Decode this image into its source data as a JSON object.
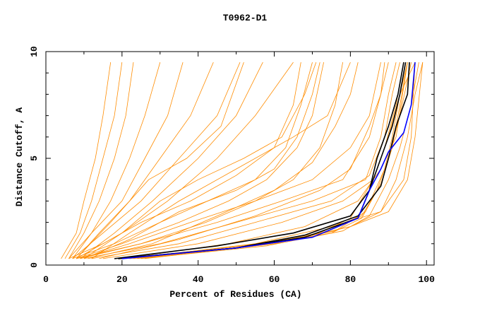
{
  "chart_data": {
    "type": "line",
    "title": "T0962-D1",
    "xlabel": "Percent of Residues (CA)",
    "ylabel": "Distance Cutoff, A",
    "xlim": [
      0,
      102
    ],
    "ylim": [
      0,
      10
    ],
    "xticks": [
      "0",
      "20",
      "40",
      "60",
      "80",
      "100"
    ],
    "yticks": [
      "0",
      "5",
      "10"
    ],
    "grid": false,
    "colors": {
      "models": "#ff8c00",
      "highlight": "#000000",
      "best": "#0000ff"
    },
    "series": [
      {
        "group": "models",
        "points": [
          [
            22,
            0.3
          ],
          [
            55,
            0.9
          ],
          [
            75,
            1.5
          ],
          [
            83,
            2.2
          ],
          [
            87,
            3.5
          ],
          [
            90,
            5
          ],
          [
            93,
            7
          ],
          [
            96,
            9.5
          ]
        ]
      },
      {
        "group": "models",
        "points": [
          [
            25,
            0.3
          ],
          [
            58,
            0.9
          ],
          [
            78,
            1.6
          ],
          [
            85,
            2.3
          ],
          [
            90,
            4
          ],
          [
            93,
            5.5
          ],
          [
            96,
            7.5
          ],
          [
            98,
            9.5
          ]
        ]
      },
      {
        "group": "models",
        "points": [
          [
            20,
            0.3
          ],
          [
            52,
            0.9
          ],
          [
            72,
            1.5
          ],
          [
            80,
            2.2
          ],
          [
            86,
            4
          ],
          [
            89,
            5.5
          ],
          [
            92,
            7.5
          ],
          [
            94,
            9.5
          ]
        ]
      },
      {
        "group": "models",
        "points": [
          [
            24,
            0.3
          ],
          [
            60,
            1
          ],
          [
            80,
            1.8
          ],
          [
            88,
            2.5
          ],
          [
            92,
            4
          ],
          [
            95,
            6
          ],
          [
            97,
            8
          ],
          [
            99,
            9.5
          ]
        ]
      },
      {
        "group": "models",
        "points": [
          [
            21,
            0.3
          ],
          [
            50,
            0.8
          ],
          [
            70,
            1.4
          ],
          [
            83,
            2.3
          ],
          [
            88,
            3.8
          ],
          [
            91,
            5.5
          ],
          [
            93,
            7.5
          ],
          [
            95,
            9.5
          ]
        ]
      },
      {
        "group": "models",
        "points": [
          [
            23,
            0.3
          ],
          [
            55,
            0.9
          ],
          [
            76,
            1.6
          ],
          [
            84,
            2.5
          ],
          [
            89,
            4.5
          ],
          [
            91,
            6
          ],
          [
            93,
            8
          ],
          [
            97,
            9.5
          ]
        ]
      },
      {
        "group": "models",
        "points": [
          [
            10,
            0.3
          ],
          [
            30,
            1
          ],
          [
            50,
            2
          ],
          [
            70,
            3
          ],
          [
            84,
            4
          ],
          [
            88,
            6
          ],
          [
            90,
            8
          ],
          [
            92,
            9.5
          ]
        ]
      },
      {
        "group": "models",
        "points": [
          [
            12,
            0.3
          ],
          [
            35,
            1
          ],
          [
            55,
            2
          ],
          [
            75,
            3
          ],
          [
            85,
            4.2
          ],
          [
            89,
            6
          ],
          [
            91,
            8
          ],
          [
            93,
            9.5
          ]
        ]
      },
      {
        "group": "models",
        "points": [
          [
            8,
            0.3
          ],
          [
            25,
            1
          ],
          [
            45,
            2
          ],
          [
            62,
            3
          ],
          [
            78,
            4
          ],
          [
            85,
            6
          ],
          [
            88,
            8
          ],
          [
            90,
            9.5
          ]
        ]
      },
      {
        "group": "models",
        "points": [
          [
            15,
            0.3
          ],
          [
            40,
            1
          ],
          [
            62,
            2
          ],
          [
            78,
            3
          ],
          [
            86,
            4
          ],
          [
            90,
            6
          ],
          [
            93,
            8
          ],
          [
            95,
            9.5
          ]
        ]
      },
      {
        "group": "models",
        "points": [
          [
            14,
            0.3
          ],
          [
            35,
            1.2
          ],
          [
            55,
            2.3
          ],
          [
            72,
            3.5
          ],
          [
            80,
            4.5
          ],
          [
            85,
            6.5
          ],
          [
            88,
            8
          ],
          [
            89,
            9.5
          ]
        ]
      },
      {
        "group": "models",
        "points": [
          [
            9,
            0.3
          ],
          [
            22,
            1
          ],
          [
            38,
            2
          ],
          [
            55,
            3
          ],
          [
            70,
            4
          ],
          [
            80,
            5.5
          ],
          [
            85,
            7
          ],
          [
            88,
            9.5
          ]
        ]
      },
      {
        "group": "models",
        "points": [
          [
            8,
            0.3
          ],
          [
            20,
            1
          ],
          [
            35,
            2
          ],
          [
            48,
            3
          ],
          [
            58,
            4
          ],
          [
            66,
            5.5
          ],
          [
            70,
            7
          ],
          [
            73,
            9.5
          ]
        ]
      },
      {
        "group": "models",
        "points": [
          [
            10,
            0.3
          ],
          [
            22,
            1.2
          ],
          [
            35,
            2.5
          ],
          [
            50,
            3.5
          ],
          [
            60,
            4.5
          ],
          [
            66,
            6
          ],
          [
            70,
            8
          ],
          [
            72,
            9.5
          ]
        ]
      },
      {
        "group": "models",
        "points": [
          [
            7,
            0.3
          ],
          [
            18,
            1
          ],
          [
            30,
            2
          ],
          [
            45,
            3.2
          ],
          [
            55,
            4
          ],
          [
            63,
            5.5
          ],
          [
            67,
            7.5
          ],
          [
            70,
            9.5
          ]
        ]
      },
      {
        "group": "models",
        "points": [
          [
            9,
            0.3
          ],
          [
            25,
            1
          ],
          [
            42,
            2
          ],
          [
            55,
            3
          ],
          [
            65,
            4
          ],
          [
            72,
            5.5
          ],
          [
            76,
            7.5
          ],
          [
            78,
            9.5
          ]
        ]
      },
      {
        "group": "models",
        "points": [
          [
            6,
            0.3
          ],
          [
            15,
            1
          ],
          [
            25,
            2
          ],
          [
            38,
            3
          ],
          [
            50,
            4.2
          ],
          [
            60,
            5.5
          ],
          [
            65,
            7.5
          ],
          [
            67,
            9.5
          ]
        ]
      },
      {
        "group": "models",
        "points": [
          [
            11,
            0.3
          ],
          [
            28,
            1
          ],
          [
            45,
            2.3
          ],
          [
            60,
            3.5
          ],
          [
            70,
            4.8
          ],
          [
            76,
            6.5
          ],
          [
            80,
            8
          ],
          [
            82,
            9.5
          ]
        ]
      },
      {
        "group": "models",
        "points": [
          [
            8,
            0.3
          ],
          [
            20,
            1.5
          ],
          [
            30,
            3
          ],
          [
            40,
            4
          ],
          [
            52,
            5
          ],
          [
            62,
            6
          ],
          [
            68,
            8
          ],
          [
            71,
            9.5
          ]
        ]
      },
      {
        "group": "models",
        "points": [
          [
            4,
            0.3
          ],
          [
            8,
            1.5
          ],
          [
            10,
            3
          ],
          [
            13,
            5
          ],
          [
            15,
            7
          ],
          [
            17,
            9.5
          ]
        ]
      },
      {
        "group": "models",
        "points": [
          [
            5,
            0.3
          ],
          [
            9,
            1.5
          ],
          [
            12,
            3
          ],
          [
            15,
            5
          ],
          [
            18,
            7
          ],
          [
            20,
            9.5
          ]
        ]
      },
      {
        "group": "models",
        "points": [
          [
            6,
            0.3
          ],
          [
            10,
            1.5
          ],
          [
            14,
            3
          ],
          [
            18,
            5
          ],
          [
            21,
            7
          ],
          [
            23,
            9.5
          ]
        ]
      },
      {
        "group": "models",
        "points": [
          [
            7,
            0.3
          ],
          [
            12,
            1.5
          ],
          [
            17,
            3
          ],
          [
            22,
            5
          ],
          [
            26,
            7
          ],
          [
            30,
            9.5
          ]
        ]
      },
      {
        "group": "models",
        "points": [
          [
            6,
            0.3
          ],
          [
            12,
            1.5
          ],
          [
            20,
            3
          ],
          [
            26,
            5
          ],
          [
            32,
            7
          ],
          [
            36,
            9.5
          ]
        ]
      },
      {
        "group": "models",
        "points": [
          [
            8,
            0.3
          ],
          [
            14,
            1.5
          ],
          [
            22,
            3
          ],
          [
            30,
            5
          ],
          [
            38,
            7
          ],
          [
            44,
            9.5
          ]
        ]
      },
      {
        "group": "models",
        "points": [
          [
            7,
            0.3
          ],
          [
            15,
            1.5
          ],
          [
            25,
            3
          ],
          [
            35,
            5
          ],
          [
            45,
            7
          ],
          [
            51,
            9.5
          ]
        ]
      },
      {
        "group": "models",
        "points": [
          [
            9,
            0.3
          ],
          [
            18,
            1.5
          ],
          [
            28,
            3
          ],
          [
            40,
            5
          ],
          [
            50,
            7
          ],
          [
            57,
            9.5
          ]
        ]
      },
      {
        "group": "models",
        "points": [
          [
            10,
            0.3
          ],
          [
            20,
            1.5
          ],
          [
            32,
            3
          ],
          [
            45,
            5
          ],
          [
            55,
            7
          ],
          [
            65,
            9.5
          ]
        ]
      },
      {
        "group": "models",
        "points": [
          [
            8,
            0.3
          ],
          [
            17,
            2
          ],
          [
            27,
            4
          ],
          [
            37,
            5
          ],
          [
            46,
            6.5
          ],
          [
            52,
            9.5
          ]
        ]
      },
      {
        "group": "models",
        "points": [
          [
            12,
            0.3
          ],
          [
            22,
            1.5
          ],
          [
            35,
            3
          ],
          [
            50,
            4.5
          ],
          [
            65,
            6
          ],
          [
            74,
            7
          ],
          [
            80,
            9.5
          ]
        ]
      },
      {
        "group": "models",
        "points": [
          [
            26,
            0.3
          ],
          [
            60,
            1
          ],
          [
            80,
            1.8
          ],
          [
            90,
            2.5
          ],
          [
            95,
            4
          ],
          [
            97,
            6
          ],
          [
            99,
            9.5
          ]
        ]
      },
      {
        "group": "models",
        "points": [
          [
            22,
            0.3
          ],
          [
            55,
            1
          ],
          [
            75,
            1.8
          ],
          [
            88,
            2.5
          ],
          [
            94,
            4
          ],
          [
            96,
            6
          ],
          [
            97,
            9.5
          ]
        ]
      },
      {
        "group": "models",
        "points": [
          [
            20,
            0.3
          ],
          [
            48,
            1
          ],
          [
            68,
            1.8
          ],
          [
            82,
            3
          ],
          [
            88,
            4.5
          ],
          [
            92,
            6
          ],
          [
            95,
            9.5
          ]
        ]
      },
      {
        "group": "highlight",
        "points": [
          [
            18,
            0.3
          ],
          [
            45,
            0.9
          ],
          [
            65,
            1.5
          ],
          [
            80,
            2.3
          ],
          [
            85,
            3.5
          ],
          [
            88,
            5
          ],
          [
            91,
            6.5
          ],
          [
            93,
            8
          ],
          [
            94.5,
            9.5
          ]
        ]
      },
      {
        "group": "highlight",
        "points": [
          [
            19,
            0.3
          ],
          [
            50,
            0.8
          ],
          [
            68,
            1.3
          ],
          [
            82,
            2.2
          ],
          [
            85,
            3.5
          ],
          [
            87,
            5
          ],
          [
            90,
            6.5
          ],
          [
            92.5,
            8
          ],
          [
            94,
            9.5
          ]
        ]
      },
      {
        "group": "highlight",
        "points": [
          [
            19,
            0.3
          ],
          [
            50,
            0.8
          ],
          [
            68,
            1.4
          ],
          [
            82,
            2.3
          ],
          [
            88,
            3.7
          ],
          [
            90,
            5
          ],
          [
            92,
            6.5
          ],
          [
            95,
            8
          ],
          [
            95.5,
            9.5
          ]
        ]
      },
      {
        "group": "best",
        "points": [
          [
            20,
            0.3
          ],
          [
            50,
            0.8
          ],
          [
            70,
            1.3
          ],
          [
            82,
            2.2
          ],
          [
            85,
            3.5
          ],
          [
            88,
            4.5
          ],
          [
            90,
            5.3
          ],
          [
            94,
            6.2
          ],
          [
            96,
            7.5
          ],
          [
            97,
            9.5
          ]
        ]
      }
    ]
  }
}
